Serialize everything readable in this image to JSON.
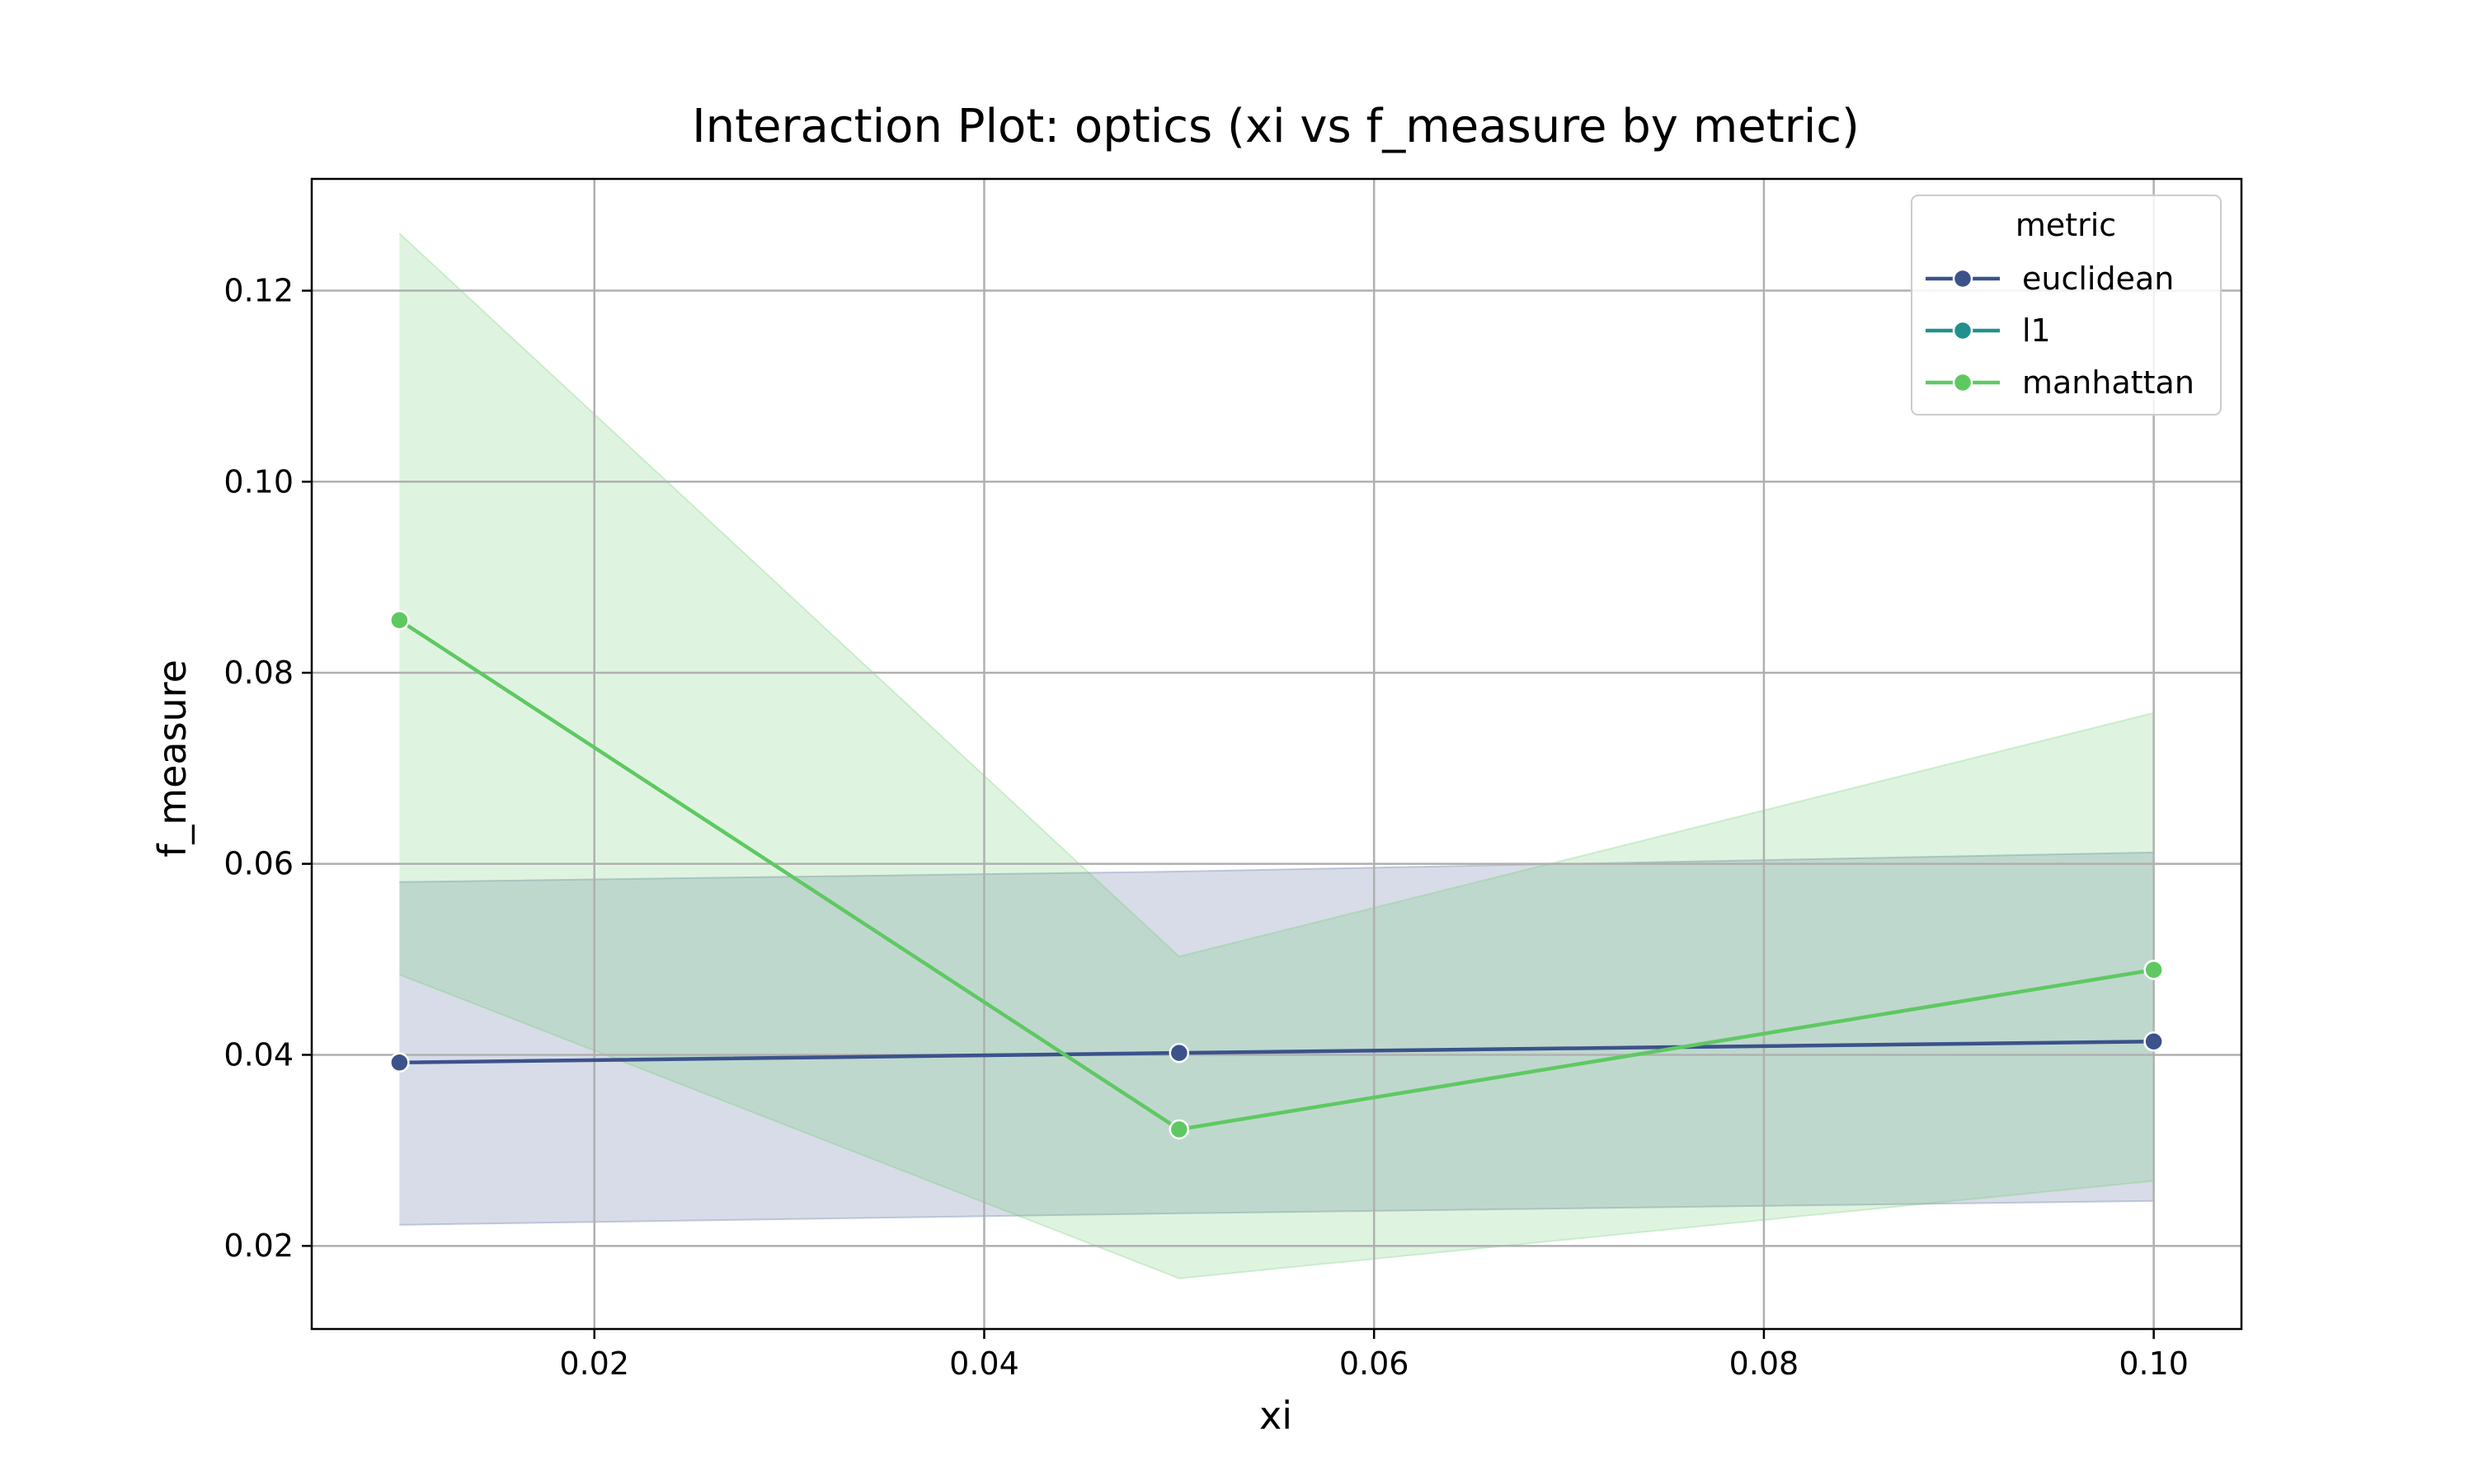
{
  "chart_data": {
    "type": "line",
    "title": "Interaction Plot: optics (xi vs f_measure by metric)",
    "xlabel": "xi",
    "ylabel": "f_measure",
    "xlim": [
      0.0055,
      0.1045
    ],
    "ylim": [
      0.0113,
      0.1317
    ],
    "xticks": [
      0.02,
      0.04,
      0.06,
      0.08,
      0.1
    ],
    "xtick_labels": [
      "0.02",
      "0.04",
      "0.06",
      "0.08",
      "0.10"
    ],
    "yticks": [
      0.02,
      0.04,
      0.06,
      0.08,
      0.1,
      0.12
    ],
    "ytick_labels": [
      "0.02",
      "0.04",
      "0.06",
      "0.08",
      "0.10",
      "0.12"
    ],
    "grid": true,
    "legend": {
      "title": "metric",
      "placement": "top-right"
    },
    "x": [
      0.01,
      0.05,
      0.1
    ],
    "series": [
      {
        "name": "euclidean",
        "color": "#3b528b",
        "values": [
          0.0392,
          0.0402,
          0.0414
        ],
        "ci_lower": [
          0.0222,
          0.0234,
          0.0247
        ],
        "ci_upper": [
          0.0581,
          0.0592,
          0.0612
        ],
        "band_color": "#3b528b",
        "show_line": true
      },
      {
        "name": "l1",
        "color": "#21918c",
        "values": [
          0.0855,
          0.0322,
          0.0489
        ],
        "ci_lower": [
          0.0484,
          0.0166,
          0.0268
        ],
        "ci_upper": [
          0.126,
          0.0503,
          0.0758
        ],
        "band_color": "#5ec962",
        "show_line": false
      },
      {
        "name": "manhattan",
        "color": "#5ec962",
        "values": [
          0.0855,
          0.0322,
          0.0489
        ],
        "ci_lower": [
          0.0484,
          0.0166,
          0.0268
        ],
        "ci_upper": [
          0.126,
          0.0503,
          0.0758
        ],
        "band_color": "#5ec962",
        "show_line": true
      }
    ]
  }
}
